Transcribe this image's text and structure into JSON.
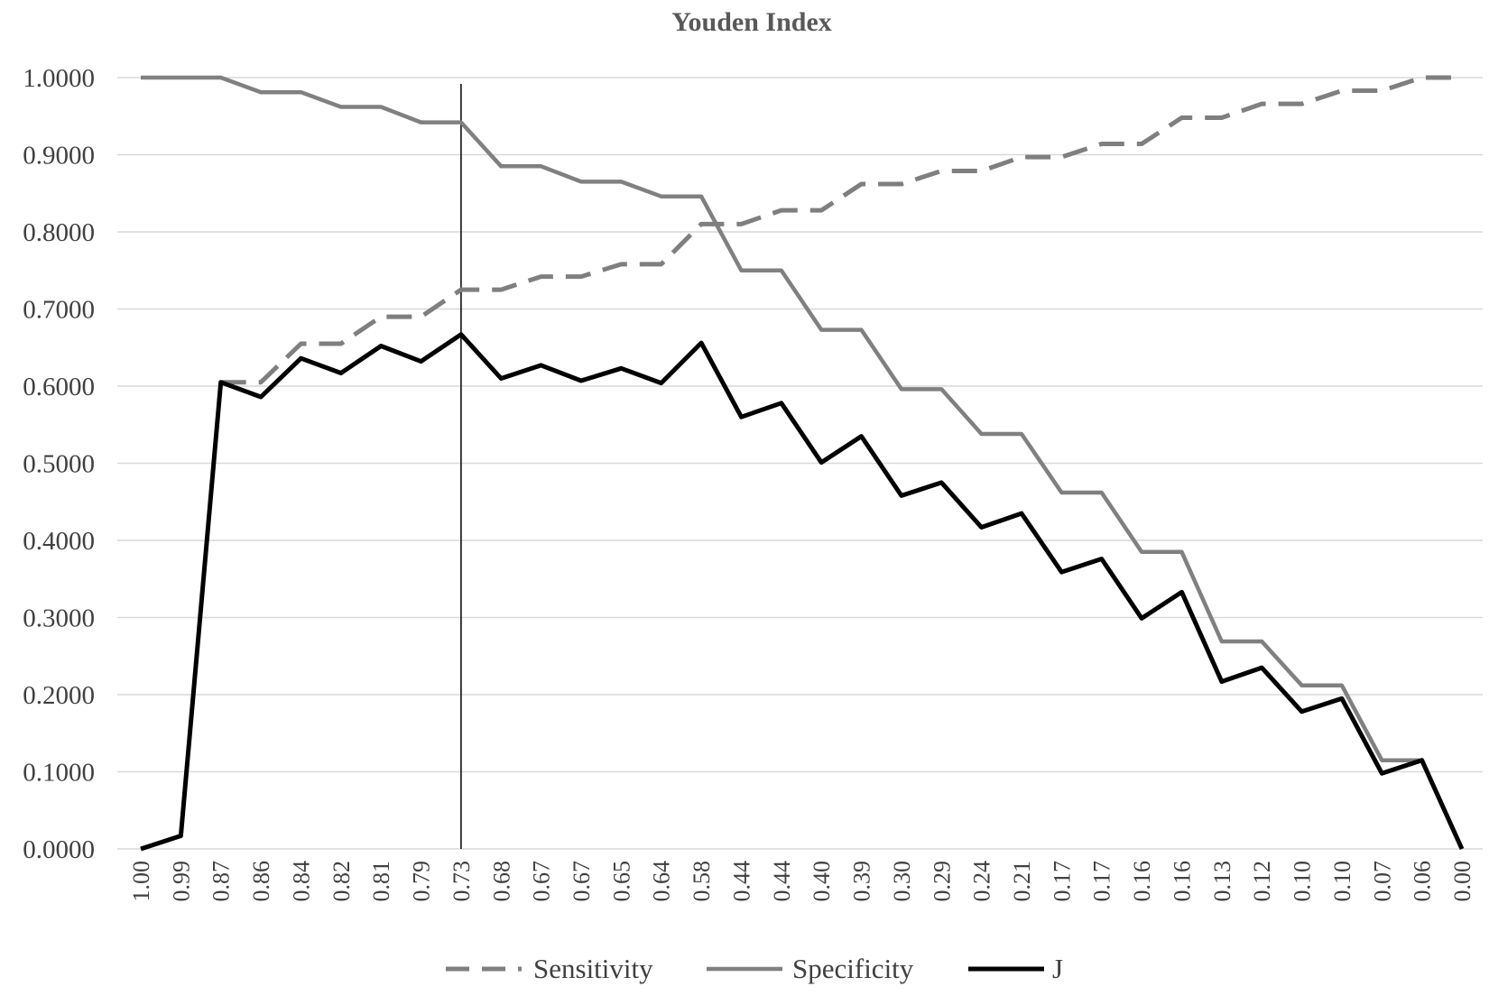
{
  "chart_data": {
    "type": "line",
    "title": "Youden Index",
    "xlabel": "",
    "ylabel": "",
    "ylim": [
      0,
      1
    ],
    "y_ticks": [
      "0.0000",
      "0.1000",
      "0.2000",
      "0.3000",
      "0.4000",
      "0.5000",
      "0.6000",
      "0.7000",
      "0.8000",
      "0.9000",
      "1.0000"
    ],
    "categories": [
      "1.00",
      "0.99",
      "0.87",
      "0.86",
      "0.84",
      "0.82",
      "0.81",
      "0.79",
      "0.73",
      "0.68",
      "0.67",
      "0.67",
      "0.65",
      "0.64",
      "0.58",
      "0.44",
      "0.44",
      "0.40",
      "0.39",
      "0.30",
      "0.29",
      "0.24",
      "0.21",
      "0.17",
      "0.17",
      "0.16",
      "0.16",
      "0.13",
      "0.12",
      "0.10",
      "0.10",
      "0.07",
      "0.06",
      "0.00"
    ],
    "grid": true,
    "legend_position": "bottom",
    "marker_line_at": "0.73",
    "series": [
      {
        "name": "Sensitivity",
        "style": "dashed",
        "color": "#7f7f7f",
        "start_index": 2,
        "values": [
          null,
          null,
          0.605,
          0.605,
          0.655,
          0.655,
          0.69,
          0.69,
          0.725,
          0.725,
          0.742,
          0.742,
          0.758,
          0.758,
          0.81,
          0.81,
          0.828,
          0.828,
          0.862,
          0.862,
          0.879,
          0.879,
          0.897,
          0.897,
          0.914,
          0.914,
          0.948,
          0.948,
          0.966,
          0.966,
          0.983,
          0.983,
          1.0,
          1.0
        ]
      },
      {
        "name": "Specificity",
        "style": "solid",
        "color": "#808080",
        "values": [
          1.0,
          1.0,
          1.0,
          0.981,
          0.981,
          0.962,
          0.962,
          0.942,
          0.942,
          0.885,
          0.885,
          0.865,
          0.865,
          0.846,
          0.846,
          0.75,
          0.75,
          0.673,
          0.673,
          0.596,
          0.596,
          0.538,
          0.538,
          0.462,
          0.462,
          0.385,
          0.385,
          0.269,
          0.269,
          0.212,
          0.212,
          0.115,
          0.115,
          0.0
        ]
      },
      {
        "name": "J",
        "style": "solid",
        "color": "#000000",
        "values": [
          0.0,
          0.017,
          0.605,
          0.586,
          0.636,
          0.617,
          0.652,
          0.632,
          0.667,
          0.61,
          0.627,
          0.607,
          0.623,
          0.604,
          0.656,
          0.56,
          0.578,
          0.501,
          0.535,
          0.458,
          0.475,
          0.417,
          0.435,
          0.359,
          0.376,
          0.299,
          0.333,
          0.217,
          0.235,
          0.178,
          0.195,
          0.098,
          0.115,
          0.0
        ]
      }
    ]
  }
}
